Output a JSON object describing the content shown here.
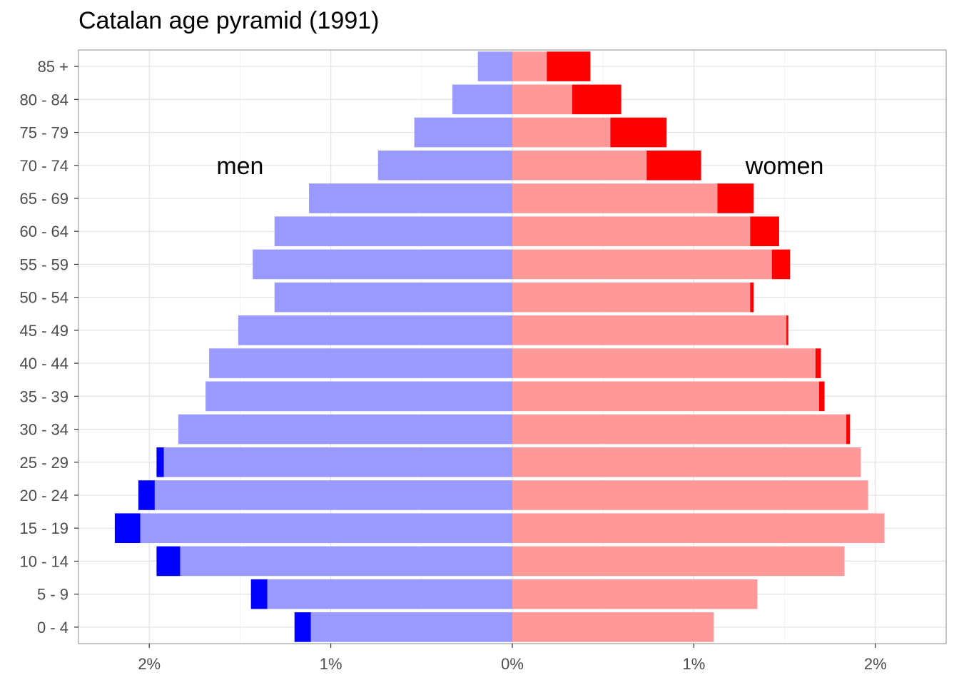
{
  "chart_data": {
    "type": "bar",
    "orientation": "horizontal",
    "title": "Catalan age pyramid (1991)",
    "categories": [
      "0 - 4",
      "5 - 9",
      "10 - 14",
      "15 - 19",
      "20 - 24",
      "25 - 29",
      "30 - 34",
      "35 - 39",
      "40 - 44",
      "45 - 49",
      "50 - 54",
      "55 - 59",
      "60 - 64",
      "65 - 69",
      "70 - 74",
      "75 - 79",
      "80 - 84",
      "85 +  "
    ],
    "xlim": [
      -2.39,
      2.39
    ],
    "x_ticks": [
      -2,
      -1,
      0,
      1,
      2
    ],
    "x_tick_labels": [
      "2%",
      "1%",
      "0%",
      "1%",
      "2%"
    ],
    "annotations": {
      "men": "men",
      "women": "women"
    },
    "series": [
      {
        "side": "left",
        "color": "#9999ff",
        "values": [
          -1.11,
          -1.35,
          -1.83,
          -2.05,
          -1.97,
          -1.92,
          -1.84,
          -1.69,
          -1.67,
          -1.51,
          -1.31,
          -1.43,
          -1.31,
          -1.12,
          -0.74,
          -0.54,
          -0.33,
          -0.19
        ]
      },
      {
        "side": "left",
        "color": "#0000ff",
        "values": [
          -0.09,
          -0.09,
          -0.13,
          -0.14,
          -0.09,
          -0.04,
          0,
          0,
          0,
          0,
          0,
          0,
          0,
          0,
          0,
          0,
          0,
          0
        ]
      },
      {
        "side": "right",
        "color": "#ff9999",
        "values": [
          1.11,
          1.35,
          1.83,
          2.05,
          1.96,
          1.92,
          1.84,
          1.69,
          1.67,
          1.51,
          1.31,
          1.43,
          1.31,
          1.13,
          0.74,
          0.54,
          0.33,
          0.19
        ]
      },
      {
        "side": "right",
        "color": "#ff0000",
        "values": [
          0,
          0,
          0,
          0,
          0,
          0,
          0.02,
          0.03,
          0.03,
          0.01,
          0.02,
          0.1,
          0.16,
          0.2,
          0.3,
          0.31,
          0.27,
          0.24
        ]
      }
    ],
    "grid": true,
    "panel_border": true
  }
}
